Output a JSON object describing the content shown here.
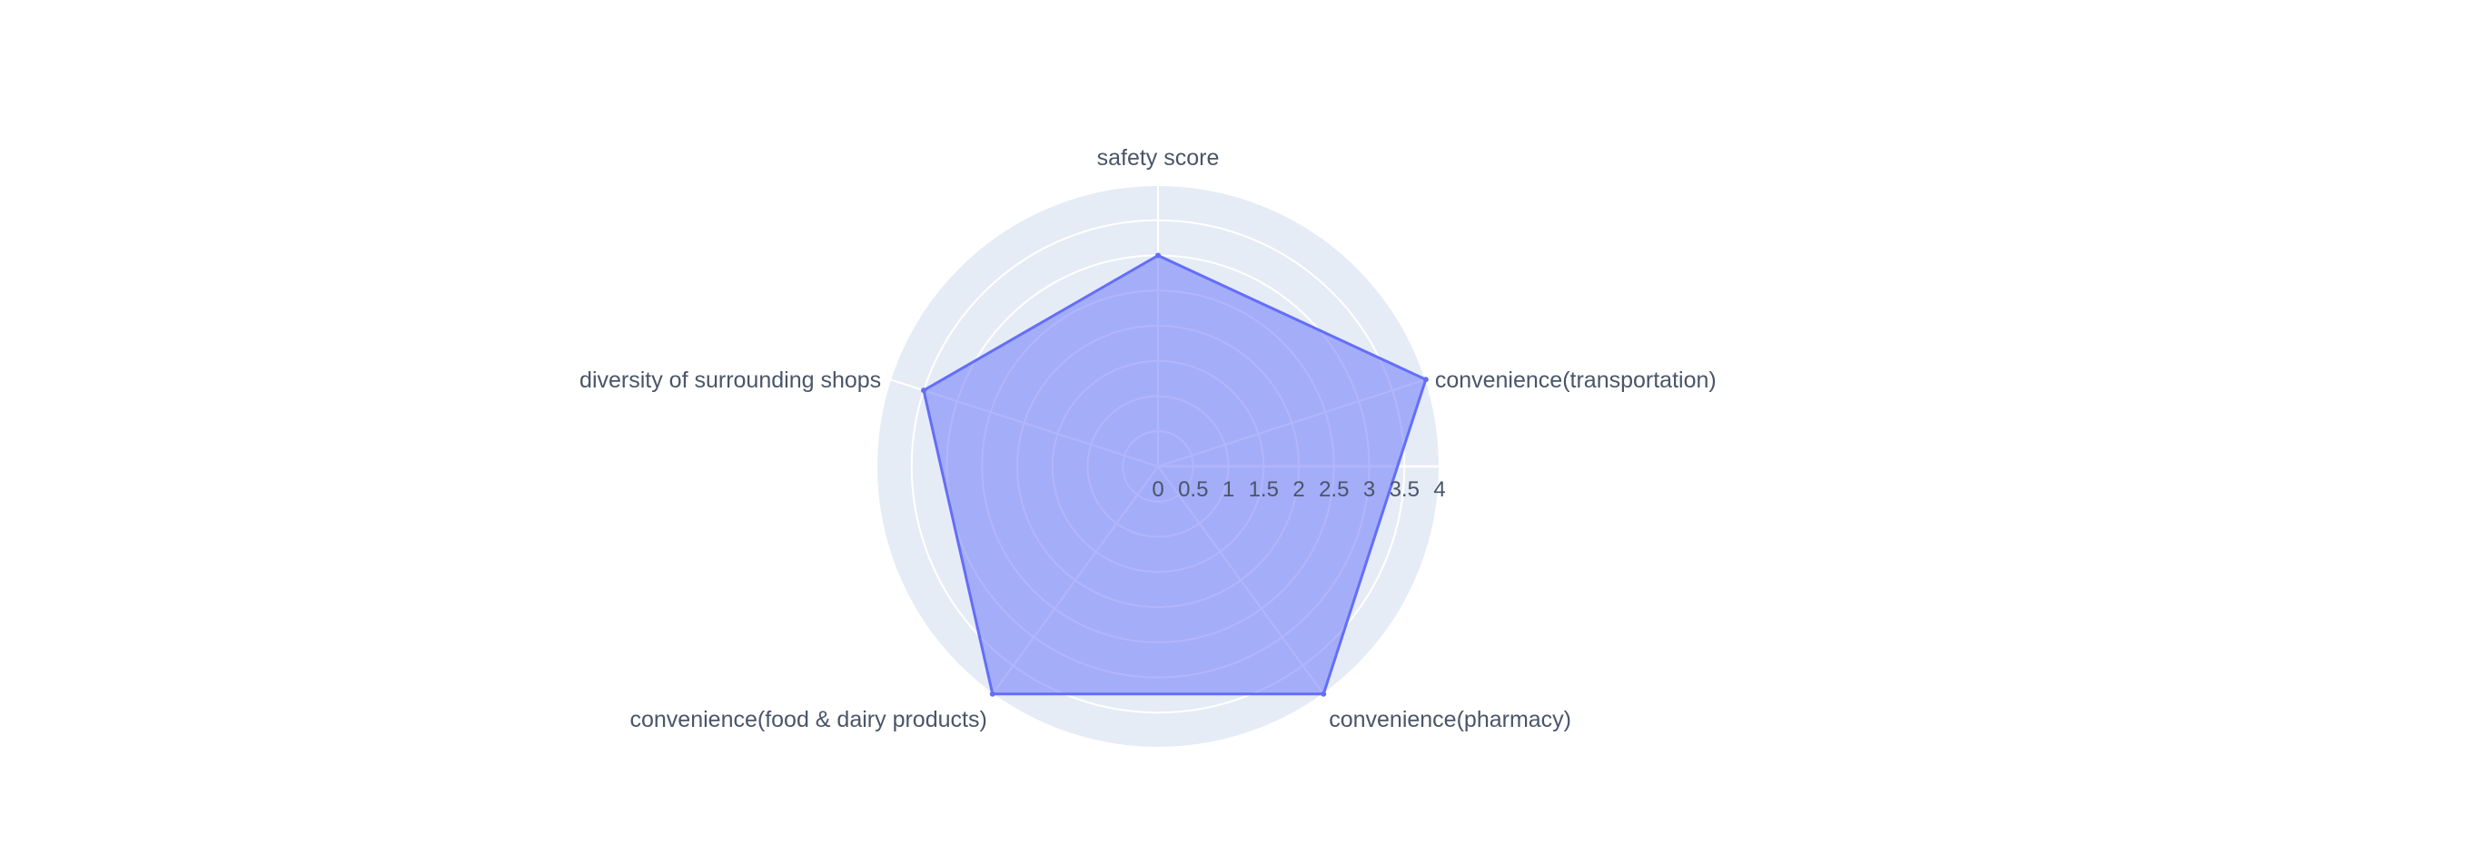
{
  "chart_data": {
    "type": "radar",
    "title": "",
    "axes": [
      "safety score",
      "convenience(transportation)",
      "convenience(pharmacy)",
      "convenience(food & dairy products)",
      "diversity of surrounding shops"
    ],
    "series": [
      {
        "values": [
          3.0,
          4.0,
          4.0,
          4.0,
          3.5
        ]
      }
    ],
    "radial_range": [
      0,
      4
    ],
    "radial_ticks": [
      "0",
      "0.5",
      "1",
      "1.5",
      "2",
      "2.5",
      "3",
      "3.5",
      "4"
    ],
    "grid": true,
    "legend": "none"
  },
  "colors": {
    "plot_background": "#e5ecf6",
    "grid": "#ffffff",
    "fill": "#636efa",
    "line": "#636efa",
    "text": "#4a5568"
  }
}
